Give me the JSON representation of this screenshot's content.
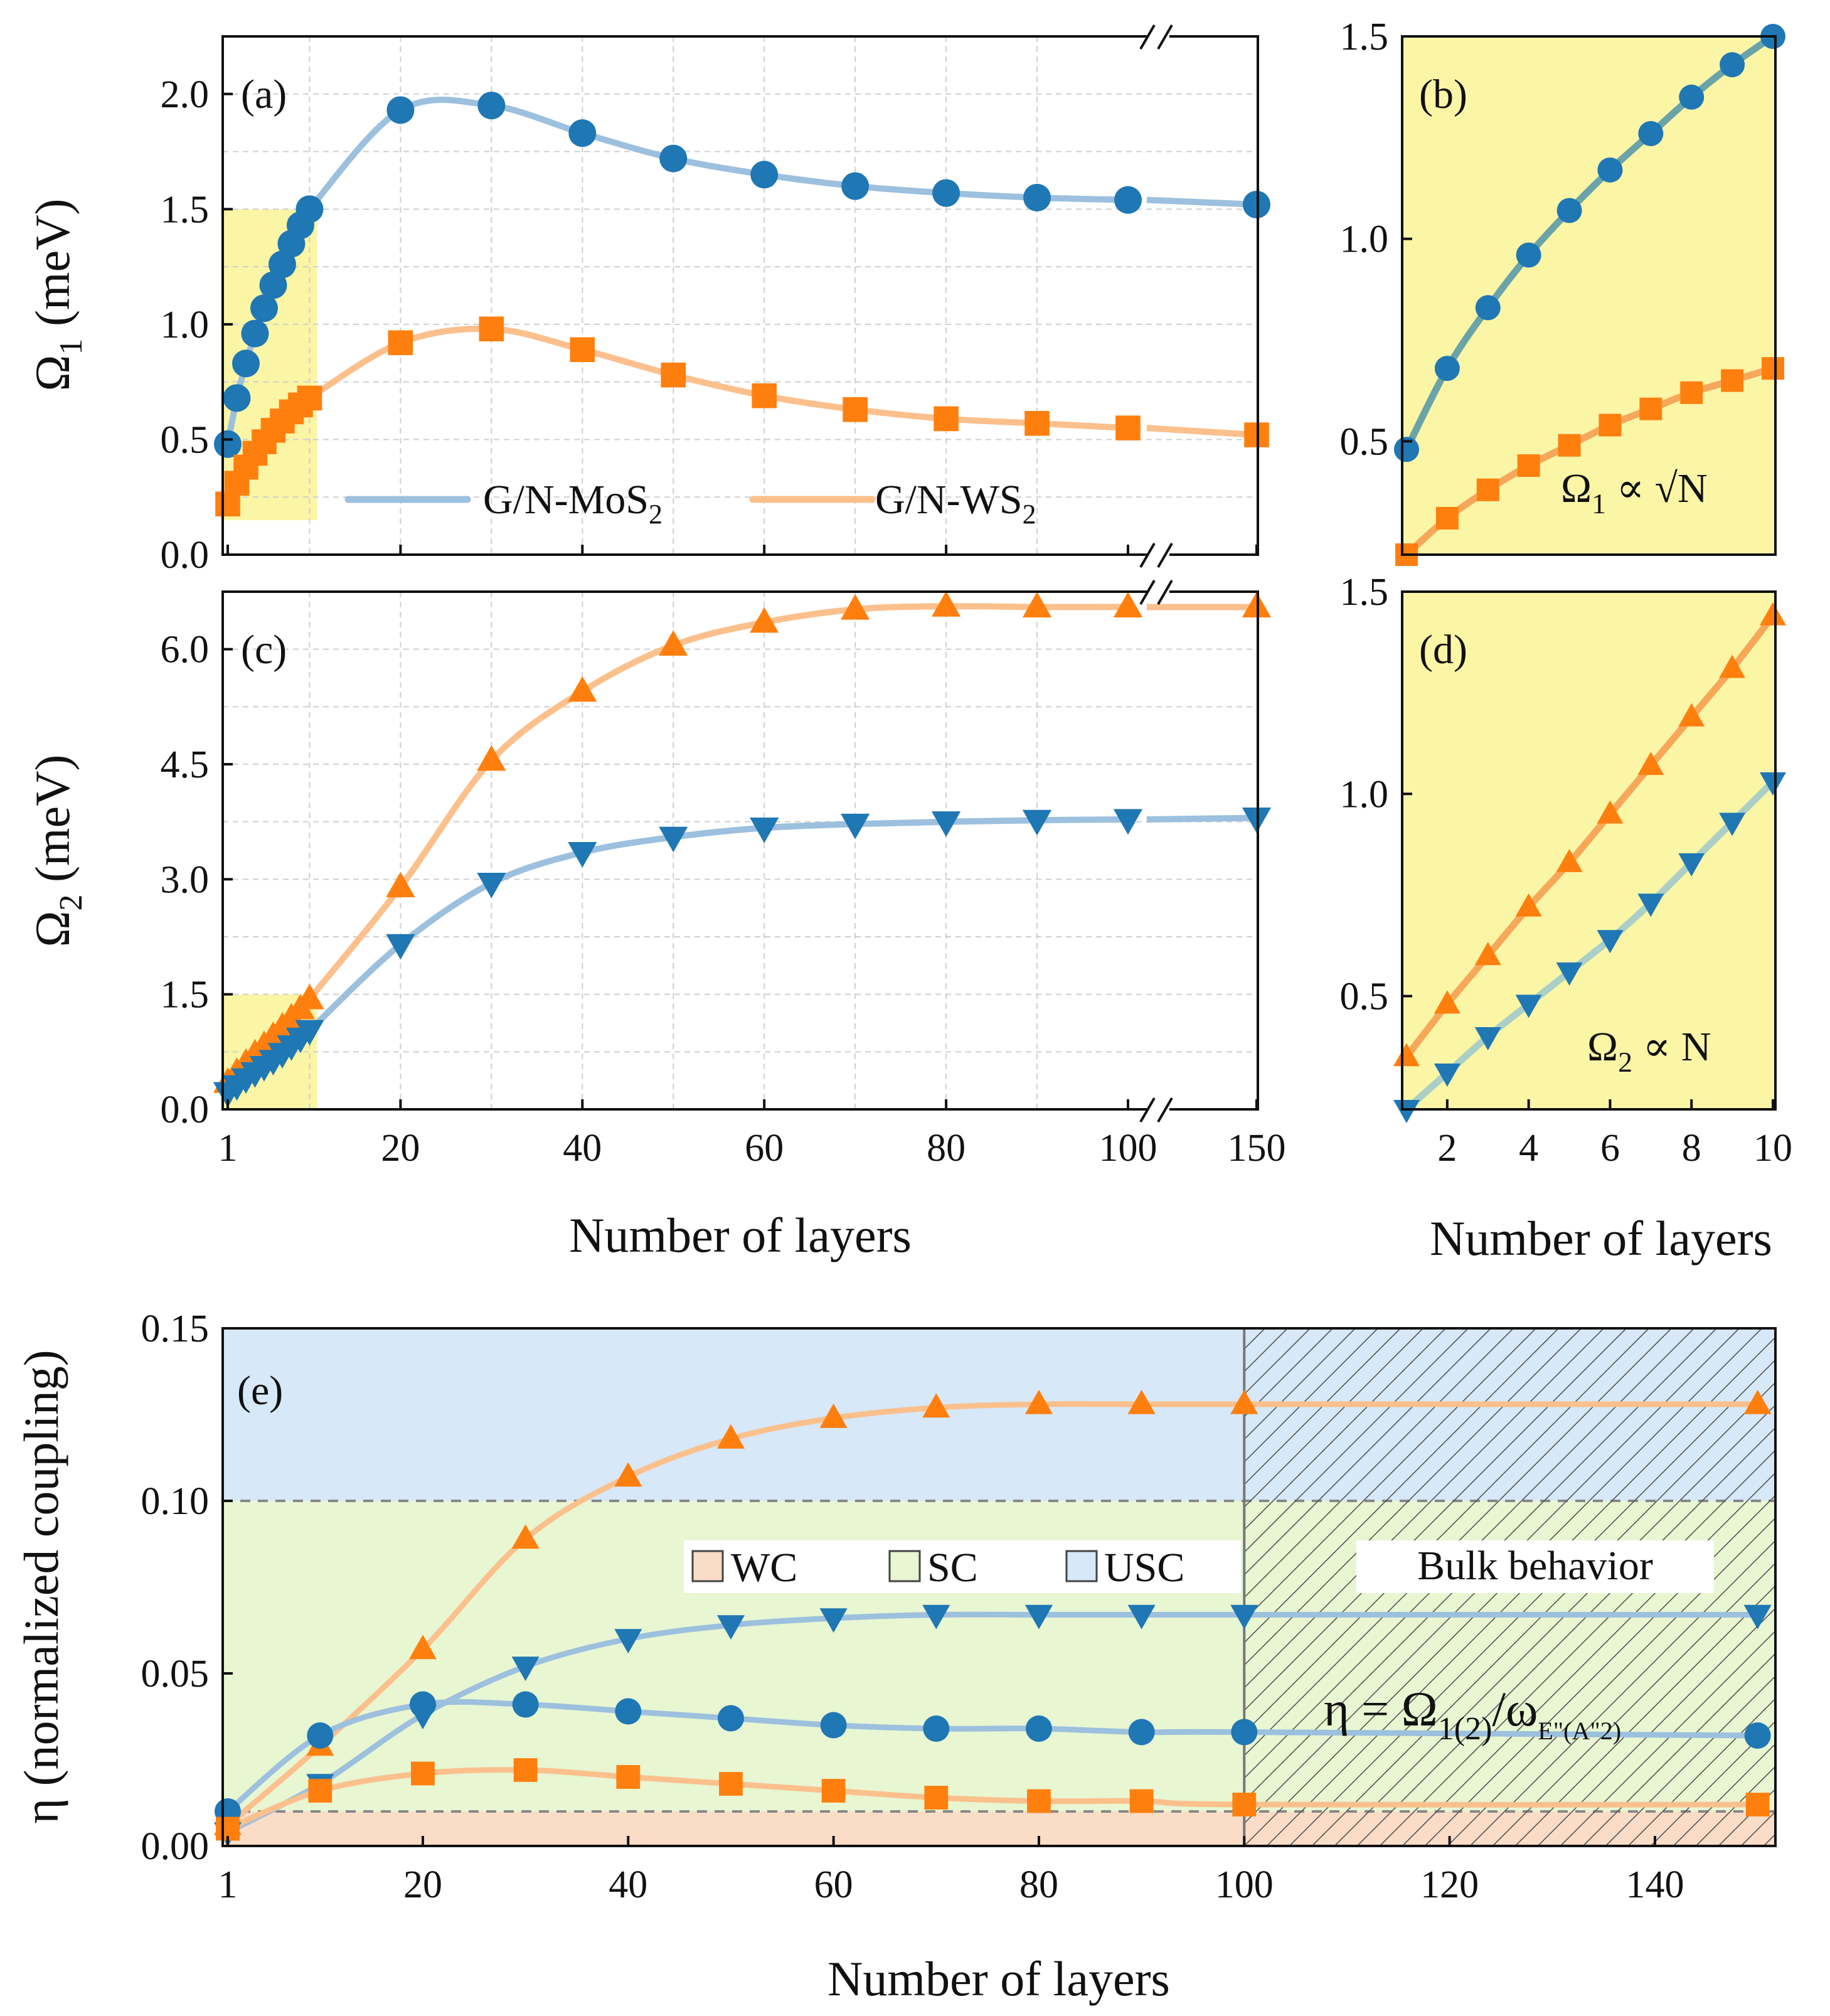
{
  "colors": {
    "mos2": "#1f77b4",
    "ws2": "#ff7f0e",
    "mos2_line": "#9cc0de",
    "ws2_line": "#fbc08c",
    "highlight": "#fbf5a6",
    "region_wc": "#fbdcc6",
    "region_sc": "#e8f6d2",
    "region_usc": "#d7e8f8"
  },
  "chart_data": [
    {
      "panel": "(a)",
      "type": "line",
      "ylabel": "Ω1 (meV)",
      "ylim": [
        0,
        2.25
      ],
      "yticks": [
        "0.0",
        "0.5",
        "1.0",
        "1.5",
        "2.0"
      ],
      "xbreak": "//",
      "highlight_region": {
        "x": [
          1,
          10
        ],
        "y": [
          0.15,
          1.5
        ]
      },
      "legend": [
        "G/N-MoS2",
        "G/N-WS2"
      ],
      "series": [
        {
          "name": "G/N-MoS2",
          "marker": "circle",
          "x": [
            1,
            2,
            3,
            4,
            5,
            6,
            7,
            8,
            9,
            10,
            20,
            30,
            40,
            50,
            60,
            70,
            80,
            90,
            100,
            150
          ],
          "values": [
            0.48,
            0.68,
            0.83,
            0.96,
            1.07,
            1.17,
            1.26,
            1.35,
            1.43,
            1.5,
            1.93,
            1.95,
            1.83,
            1.72,
            1.65,
            1.6,
            1.57,
            1.55,
            1.54,
            1.52
          ]
        },
        {
          "name": "G/N-WS2",
          "marker": "square",
          "x": [
            1,
            2,
            3,
            4,
            5,
            6,
            7,
            8,
            9,
            10,
            20,
            30,
            40,
            50,
            60,
            70,
            80,
            90,
            100,
            150
          ],
          "values": [
            0.22,
            0.31,
            0.38,
            0.44,
            0.49,
            0.54,
            0.58,
            0.62,
            0.65,
            0.68,
            0.92,
            0.98,
            0.89,
            0.78,
            0.69,
            0.63,
            0.59,
            0.57,
            0.55,
            0.52
          ]
        }
      ]
    },
    {
      "panel": "(b)",
      "type": "line",
      "ylim": [
        0.22,
        1.5
      ],
      "yticks": [
        "0.5",
        "1.0",
        "1.5"
      ],
      "annotation": "Ω1 ∝ √N",
      "series": [
        {
          "name": "G/N-MoS2",
          "marker": "circle",
          "x": [
            1,
            2,
            3,
            4,
            5,
            6,
            7,
            8,
            9,
            10
          ],
          "values": [
            0.48,
            0.68,
            0.83,
            0.96,
            1.07,
            1.17,
            1.26,
            1.35,
            1.43,
            1.5
          ]
        },
        {
          "name": "G/N-WS2",
          "marker": "square",
          "x": [
            1,
            2,
            3,
            4,
            5,
            6,
            7,
            8,
            9,
            10
          ],
          "values": [
            0.22,
            0.31,
            0.38,
            0.44,
            0.49,
            0.54,
            0.58,
            0.62,
            0.65,
            0.68
          ]
        }
      ]
    },
    {
      "panel": "(c)",
      "type": "line",
      "ylabel": "Ω2 (meV)",
      "xlabel": "Number of layers",
      "ylim": [
        0,
        6.75
      ],
      "yticks": [
        "0.0",
        "1.5",
        "3.0",
        "4.5",
        "6.0"
      ],
      "xticks": [
        "1",
        "20",
        "40",
        "60",
        "80",
        "100",
        "150"
      ],
      "highlight_region": {
        "x": [
          1,
          10
        ],
        "y": [
          0,
          1.5
        ]
      },
      "series": [
        {
          "name": "G/N-WS2",
          "marker": "triangle-up",
          "x": [
            1,
            2,
            3,
            4,
            5,
            6,
            7,
            8,
            9,
            10,
            20,
            30,
            40,
            50,
            60,
            70,
            80,
            90,
            100,
            150
          ],
          "values": [
            0.35,
            0.48,
            0.6,
            0.72,
            0.83,
            0.95,
            1.07,
            1.19,
            1.31,
            1.44,
            2.9,
            4.55,
            5.45,
            6.05,
            6.35,
            6.52,
            6.56,
            6.55,
            6.55,
            6.55
          ]
        },
        {
          "name": "G/N-MoS2",
          "marker": "triangle-down",
          "x": [
            1,
            2,
            3,
            4,
            5,
            6,
            7,
            8,
            9,
            10,
            20,
            30,
            40,
            50,
            60,
            70,
            80,
            90,
            100,
            150
          ],
          "values": [
            0.22,
            0.31,
            0.4,
            0.48,
            0.56,
            0.64,
            0.73,
            0.83,
            0.93,
            1.03,
            2.15,
            2.95,
            3.35,
            3.55,
            3.67,
            3.72,
            3.75,
            3.77,
            3.78,
            3.8
          ]
        }
      ]
    },
    {
      "panel": "(d)",
      "type": "line",
      "xlabel": "Number of layers",
      "ylim": [
        0.22,
        1.5
      ],
      "yticks": [
        "0.5",
        "1.0",
        "1.5"
      ],
      "xticks": [
        "2",
        "4",
        "6",
        "8",
        "10"
      ],
      "annotation": "Ω2 ∝ N",
      "series": [
        {
          "name": "G/N-WS2",
          "marker": "triangle-up",
          "x": [
            1,
            2,
            3,
            4,
            5,
            6,
            7,
            8,
            9,
            10
          ],
          "values": [
            0.35,
            0.48,
            0.6,
            0.72,
            0.83,
            0.95,
            1.07,
            1.19,
            1.31,
            1.44
          ]
        },
        {
          "name": "G/N-MoS2",
          "marker": "triangle-down",
          "x": [
            1,
            2,
            3,
            4,
            5,
            6,
            7,
            8,
            9,
            10
          ],
          "values": [
            0.22,
            0.31,
            0.4,
            0.48,
            0.56,
            0.64,
            0.73,
            0.83,
            0.93,
            1.03
          ]
        }
      ]
    },
    {
      "panel": "(e)",
      "type": "line",
      "xlabel": "Number of layers",
      "ylabel": "η (normalized coupling)",
      "ylim": [
        0,
        0.15
      ],
      "xlim": [
        1,
        151
      ],
      "yticks": [
        "0.00",
        "0.05",
        "0.10",
        "0.15"
      ],
      "xticks": [
        "1",
        "20",
        "40",
        "60",
        "80",
        "100",
        "120",
        "140"
      ],
      "thresholds": [
        0.01,
        0.1
      ],
      "regions": [
        "WC",
        "SC",
        "USC"
      ],
      "bulk_label": "Bulk behavior",
      "bulk_start": 100,
      "formula": {
        "main": "η = Ω",
        "sub1": "1(2)",
        "mid": "/ω",
        "sub2": "E\"(A\"2)"
      },
      "series": [
        {
          "name": "G/N-WS2 Ω2",
          "marker": "triangle-up",
          "x": [
            1,
            10,
            20,
            30,
            40,
            50,
            60,
            70,
            80,
            90,
            100,
            150
          ],
          "values": [
            0.006,
            0.029,
            0.057,
            0.089,
            0.107,
            0.118,
            0.124,
            0.127,
            0.128,
            0.128,
            0.128,
            0.128
          ]
        },
        {
          "name": "G/N-MoS2 Ω2",
          "marker": "triangle-down",
          "x": [
            1,
            10,
            20,
            30,
            40,
            50,
            60,
            70,
            80,
            90,
            100,
            150
          ],
          "values": [
            0.004,
            0.018,
            0.038,
            0.052,
            0.06,
            0.064,
            0.066,
            0.067,
            0.067,
            0.067,
            0.067,
            0.067
          ]
        },
        {
          "name": "G/N-MoS2 Ω1",
          "marker": "circle",
          "x": [
            1,
            10,
            20,
            30,
            40,
            50,
            60,
            70,
            80,
            90,
            100,
            150
          ],
          "values": [
            0.01,
            0.032,
            0.041,
            0.041,
            0.039,
            0.037,
            0.035,
            0.034,
            0.034,
            0.033,
            0.033,
            0.032
          ]
        },
        {
          "name": "G/N-WS2 Ω1",
          "marker": "square",
          "x": [
            1,
            10,
            20,
            30,
            40,
            50,
            60,
            70,
            80,
            90,
            100,
            150
          ],
          "values": [
            0.005,
            0.016,
            0.021,
            0.022,
            0.02,
            0.018,
            0.016,
            0.014,
            0.013,
            0.013,
            0.012,
            0.012
          ]
        }
      ]
    }
  ]
}
